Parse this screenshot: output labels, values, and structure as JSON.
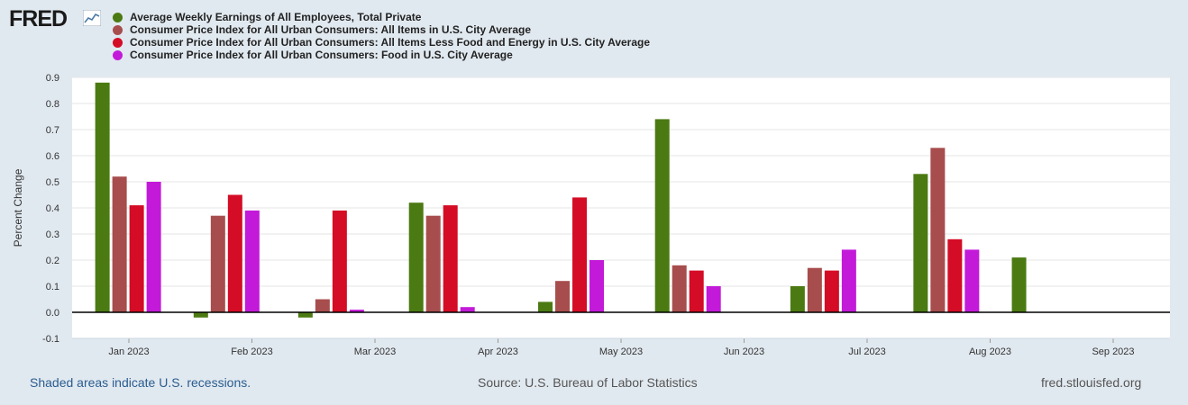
{
  "header": {
    "logo_text": "FRED"
  },
  "footer": {
    "recession_note": "Shaded areas indicate U.S. recessions.",
    "source": "Source: U.S. Bureau of Labor Statistics",
    "site": "fred.stlouisfed.org"
  },
  "chart_data": {
    "type": "bar",
    "title": "",
    "xlabel": "",
    "ylabel": "Percent Change",
    "ylim": [
      -0.1,
      0.9
    ],
    "yticks": [
      "-0.1",
      "0.0",
      "0.1",
      "0.2",
      "0.3",
      "0.4",
      "0.5",
      "0.6",
      "0.7",
      "0.8",
      "0.9"
    ],
    "grid": true,
    "categories": [
      "Jan 2023",
      "Feb 2023",
      "Mar 2023",
      "Apr 2023",
      "May 2023",
      "Jun 2023",
      "Jul 2023",
      "Aug 2023",
      "Sep 2023"
    ],
    "series": [
      {
        "name": "Average Weekly Earnings of All Employees, Total Private",
        "color": "#4b7a12",
        "values": [
          0.88,
          -0.02,
          -0.02,
          0.42,
          0.04,
          0.74,
          0.1,
          0.53,
          0.21
        ]
      },
      {
        "name": "Consumer Price Index for All Urban Consumers: All Items in U.S. City Average",
        "color": "#a84d4d",
        "values": [
          0.52,
          0.37,
          0.05,
          0.37,
          0.12,
          0.18,
          0.17,
          0.63,
          null
        ]
      },
      {
        "name": "Consumer Price Index for All Urban Consumers: All Items Less Food and Energy in U.S. City Average",
        "color": "#d40c25",
        "values": [
          0.41,
          0.45,
          0.39,
          0.41,
          0.44,
          0.16,
          0.16,
          0.28,
          null
        ]
      },
      {
        "name": "Consumer Price Index for All Urban Consumers: Food in U.S. City Average",
        "color": "#c21ad8",
        "values": [
          0.5,
          0.39,
          0.01,
          0.02,
          0.2,
          0.1,
          0.24,
          0.24,
          null
        ]
      }
    ],
    "bar_month_offsets": [
      0.25,
      0.05,
      -0.1,
      -0.2,
      -0.15,
      -0.2,
      -0.1,
      -0.1,
      -0.3
    ]
  }
}
